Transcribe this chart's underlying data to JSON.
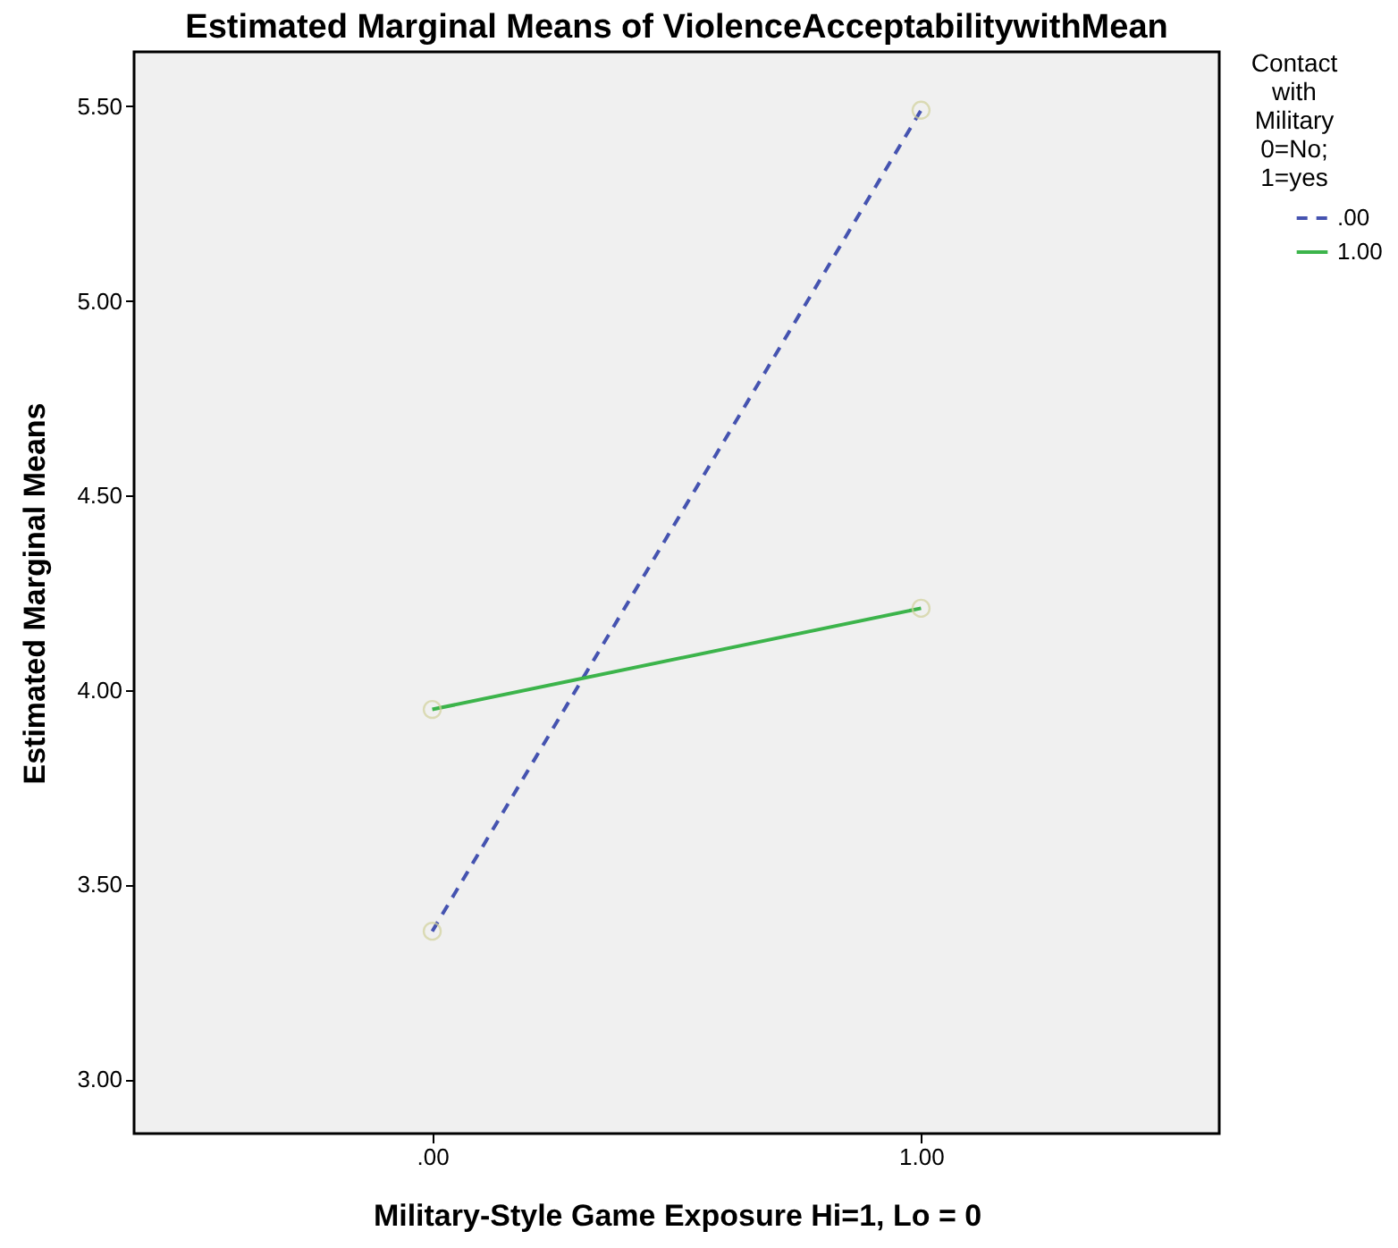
{
  "chart_data": {
    "type": "line",
    "title": "Estimated Marginal Means of ViolenceAcceptabilitywithMean",
    "xlabel": "Military-Style Game Exposure Hi=1, Lo = 0",
    "ylabel": "Estimated Marginal Means",
    "legend_title": "Contact with Military 0=No; 1=yes",
    "categories": [
      ".00",
      "1.00"
    ],
    "series": [
      {
        "name": ".00",
        "color": "#4553b0",
        "values": [
          3.38,
          5.49
        ],
        "line_style": "dashed"
      },
      {
        "name": "1.00",
        "color": "#3cb44b",
        "values": [
          3.95,
          4.21
        ],
        "line_style": "solid"
      }
    ],
    "ylim": [
      2.86,
      5.64
    ],
    "yticks": [
      {
        "value": 3.0,
        "label": "3.00"
      },
      {
        "value": 3.5,
        "label": "3.50"
      },
      {
        "value": 4.0,
        "label": "4.00"
      },
      {
        "value": 4.5,
        "label": "4.50"
      },
      {
        "value": 5.0,
        "label": "5.00"
      },
      {
        "value": 5.5,
        "label": "5.50"
      }
    ],
    "grid": false,
    "legend": "top right",
    "marker": "circle"
  }
}
